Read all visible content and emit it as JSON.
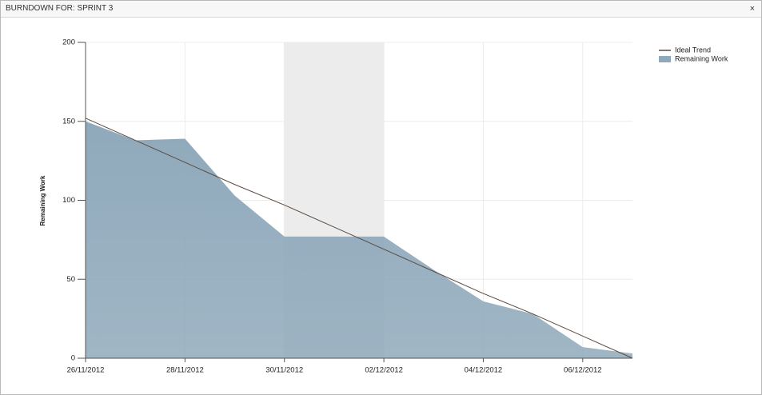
{
  "window": {
    "title": "BURNDOWN FOR: SPRINT 3",
    "close": "×"
  },
  "chart_data": {
    "type": "area",
    "y_label": "Remaining Work",
    "categories": [
      "26/11/2012",
      null,
      "28/11/2012",
      null,
      "30/11/2012",
      null,
      "02/12/2012",
      null,
      "04/12/2012",
      null,
      "06/12/2012",
      null
    ],
    "series": [
      {
        "name": "Ideal Trend",
        "kind": "line",
        "color": "#5b4a40",
        "values": [
          152,
          138,
          124,
          110,
          97,
          83,
          69,
          55,
          41,
          28,
          14,
          0
        ]
      },
      {
        "name": "Remaining Work",
        "kind": "area",
        "color": "#8fa9bb",
        "values": [
          150,
          138,
          139,
          103,
          77,
          77,
          77,
          56,
          36,
          28,
          7,
          3
        ]
      }
    ],
    "ylim": [
      0,
      200
    ],
    "yticks": [
      0,
      50,
      100,
      150,
      200
    ],
    "grid": true,
    "legend": "top-right"
  }
}
